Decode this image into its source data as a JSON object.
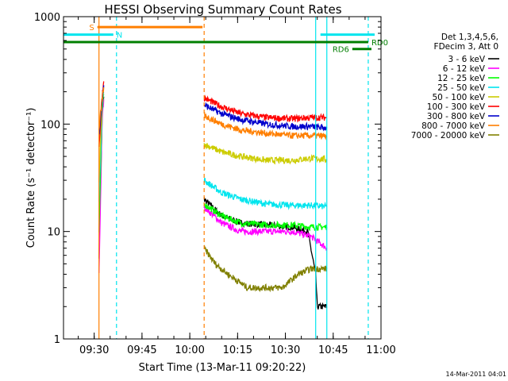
{
  "chart_data": {
    "type": "line",
    "title": "HESSI Observing Summary Count Rates",
    "xlabel": "Start Time (13-Mar-11 09:20:22)",
    "ylabel": "Count Rate (s⁻¹ detector⁻¹)",
    "yscale": "log",
    "ylim": [
      1,
      1000
    ],
    "xlim": [
      "09:20:22",
      "11:00:00"
    ],
    "x_ticks": [
      "09:30",
      "09:45",
      "10:00",
      "10:15",
      "10:30",
      "10:45",
      "11:00"
    ],
    "y_ticks": [
      "1",
      "10",
      "100",
      "1000"
    ],
    "legend_header": [
      "Det 1,3,4,5,6,",
      "FDecim 3, Att 0"
    ],
    "legend_position": "right",
    "timestamp": "14-Mar-2011 04:01",
    "flags": [
      {
        "label": "S",
        "color": "#ff7f00",
        "level": 800,
        "start": "09:31:00",
        "end": "10:04:00",
        "label_side": "left"
      },
      {
        "label": "N",
        "color": "#00e5ee",
        "level": 680,
        "start": "09:20:22",
        "end": "09:36:00",
        "label_side": "right"
      },
      {
        "label": "N",
        "color": "#00e5ee",
        "level": 680,
        "start": "10:41:00",
        "end": "10:58:00",
        "label_side": "none"
      },
      {
        "label": "RD0",
        "color": "#007f00",
        "level": 580,
        "start": "09:20:22",
        "end": "10:56:00",
        "label_side": "right"
      },
      {
        "label": "RD6",
        "color": "#007f00",
        "level": 500,
        "start": "10:51:00",
        "end": "10:57:00",
        "label_side": "left"
      }
    ],
    "vlines": [
      {
        "time": "09:31:30",
        "color": "#ff7f00",
        "style": "solid"
      },
      {
        "time": "09:37:00",
        "color": "#00e5ee",
        "style": "dashed"
      },
      {
        "time": "10:04:30",
        "color": "#ff7f00",
        "style": "dashed"
      },
      {
        "time": "10:39:30",
        "color": "#00e5ee",
        "style": "solid"
      },
      {
        "time": "10:43:00",
        "color": "#00e5ee",
        "style": "solid"
      },
      {
        "time": "10:56:00",
        "color": "#00e5ee",
        "style": "dashed"
      }
    ],
    "series": [
      {
        "name": "3 - 6 keV",
        "color": "#000000",
        "segments": [
          [
            [
              "09:31:30",
              6
            ],
            [
              "09:32:30",
              120
            ],
            [
              "09:33:00",
              180
            ]
          ],
          [
            [
              "10:04:30",
              20
            ],
            [
              "10:10:00",
              14
            ],
            [
              "10:16:00",
              12
            ],
            [
              "10:24:00",
              11.5
            ],
            [
              "10:32:00",
              11
            ],
            [
              "10:37:00",
              10
            ],
            [
              "10:39:30",
              4
            ],
            [
              "10:40:00",
              2
            ],
            [
              "10:43:00",
              2
            ]
          ]
        ]
      },
      {
        "name": "6 - 12 keV",
        "color": "#ff00ff",
        "segments": [
          [
            [
              "09:31:30",
              4
            ],
            [
              "09:32:30",
              110
            ],
            [
              "09:33:00",
              170
            ]
          ],
          [
            [
              "10:04:30",
              17
            ],
            [
              "10:10:00",
              12
            ],
            [
              "10:16:00",
              10
            ],
            [
              "10:24:00",
              10
            ],
            [
              "10:32:00",
              10
            ],
            [
              "10:38:00",
              9
            ],
            [
              "10:43:00",
              7
            ]
          ]
        ]
      },
      {
        "name": "12 - 25 keV",
        "color": "#00ff00",
        "segments": [
          [
            [
              "09:31:30",
              10
            ],
            [
              "09:32:30",
              130
            ],
            [
              "09:33:00",
              190
            ]
          ],
          [
            [
              "10:04:30",
              18
            ],
            [
              "10:10:00",
              14
            ],
            [
              "10:16:00",
              12
            ],
            [
              "10:24:00",
              11.5
            ],
            [
              "10:32:00",
              11.5
            ],
            [
              "10:38:00",
              11
            ],
            [
              "10:43:00",
              11
            ]
          ]
        ]
      },
      {
        "name": "25 - 50 keV",
        "color": "#00e5ee",
        "segments": [
          [
            [
              "09:31:30",
              20
            ],
            [
              "09:32:30",
              150
            ],
            [
              "09:33:00",
              200
            ]
          ],
          [
            [
              "10:04:30",
              30
            ],
            [
              "10:10:00",
              23
            ],
            [
              "10:16:00",
              20
            ],
            [
              "10:24:00",
              18
            ],
            [
              "10:32:00",
              17.5
            ],
            [
              "10:38:00",
              17.5
            ],
            [
              "10:43:00",
              17
            ]
          ]
        ]
      },
      {
        "name": "50 - 100 keV",
        "color": "#cccc00",
        "segments": [
          [
            [
              "09:31:30",
              30
            ],
            [
              "09:32:30",
              160
            ],
            [
              "09:33:00",
              210
            ]
          ],
          [
            [
              "10:04:30",
              65
            ],
            [
              "10:10:00",
              55
            ],
            [
              "10:16:00",
              50
            ],
            [
              "10:24:00",
              46
            ],
            [
              "10:32:00",
              46
            ],
            [
              "10:38:00",
              48
            ],
            [
              "10:43:00",
              47
            ]
          ]
        ]
      },
      {
        "name": "100 - 300 keV",
        "color": "#ff0000",
        "segments": [
          [
            [
              "09:31:30",
              60
            ],
            [
              "09:32:30",
              180
            ],
            [
              "09:33:00",
              250
            ]
          ],
          [
            [
              "10:04:30",
              175
            ],
            [
              "10:10:00",
              145
            ],
            [
              "10:16:00",
              125
            ],
            [
              "10:24:00",
              115
            ],
            [
              "10:32:00",
              112
            ],
            [
              "10:38:00",
              115
            ],
            [
              "10:43:00",
              115
            ]
          ]
        ]
      },
      {
        "name": "300 - 800 keV",
        "color": "#0000cc",
        "segments": [
          [
            [
              "09:31:30",
              80
            ],
            [
              "09:32:30",
              170
            ],
            [
              "09:33:00",
              230
            ]
          ],
          [
            [
              "10:04:30",
              150
            ],
            [
              "10:10:00",
              125
            ],
            [
              "10:16:00",
              110
            ],
            [
              "10:24:00",
              100
            ],
            [
              "10:32:00",
              95
            ],
            [
              "10:38:00",
              95
            ],
            [
              "10:43:00",
              92
            ]
          ]
        ]
      },
      {
        "name": "800 - 7000 keV",
        "color": "#ff7f00",
        "segments": [
          [
            [
              "09:31:30",
              90
            ],
            [
              "09:32:30",
              175
            ],
            [
              "09:33:00",
              220
            ]
          ],
          [
            [
              "10:04:30",
              120
            ],
            [
              "10:10:00",
              100
            ],
            [
              "10:16:00",
              88
            ],
            [
              "10:24:00",
              82
            ],
            [
              "10:32:00",
              78
            ],
            [
              "10:38:00",
              78
            ],
            [
              "10:43:00",
              77
            ]
          ]
        ]
      },
      {
        "name": "7000 - 20000 keV",
        "color": "#808000",
        "segments": [
          [
            [
              "10:04:30",
              7
            ],
            [
              "10:08:00",
              5
            ],
            [
              "10:12:00",
              4
            ],
            [
              "10:18:00",
              3
            ],
            [
              "10:24:00",
              3
            ],
            [
              "10:29:00",
              3
            ],
            [
              "10:34:00",
              4
            ],
            [
              "10:38:00",
              4.5
            ],
            [
              "10:43:00",
              4.5
            ]
          ]
        ]
      }
    ]
  }
}
